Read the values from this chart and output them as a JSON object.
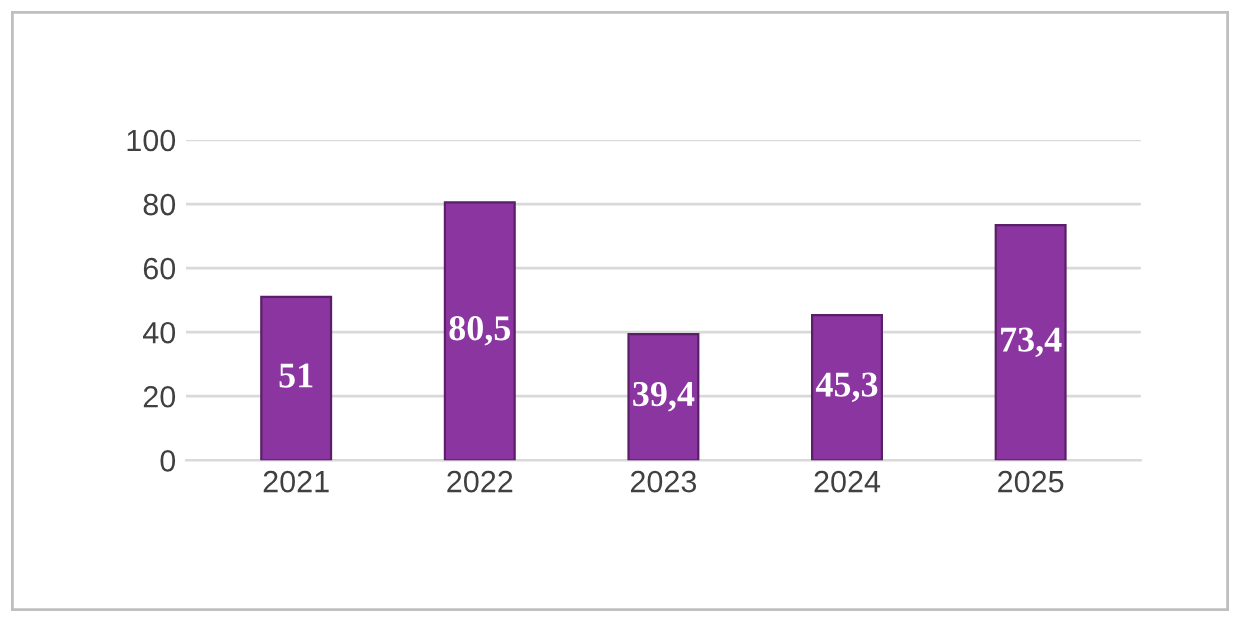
{
  "chart_data": {
    "type": "bar",
    "categories": [
      "2021",
      "2022",
      "2023",
      "2024",
      "2025"
    ],
    "values": [
      51,
      80.5,
      39.4,
      45.3,
      73.4
    ],
    "value_labels": [
      "51",
      "80,5",
      "39,4",
      "45,3",
      "73,4"
    ],
    "color": "#8b35a0",
    "ylim": [
      0,
      100
    ],
    "yticks": [
      0,
      20,
      40,
      60,
      80,
      100
    ],
    "grid": "y"
  }
}
